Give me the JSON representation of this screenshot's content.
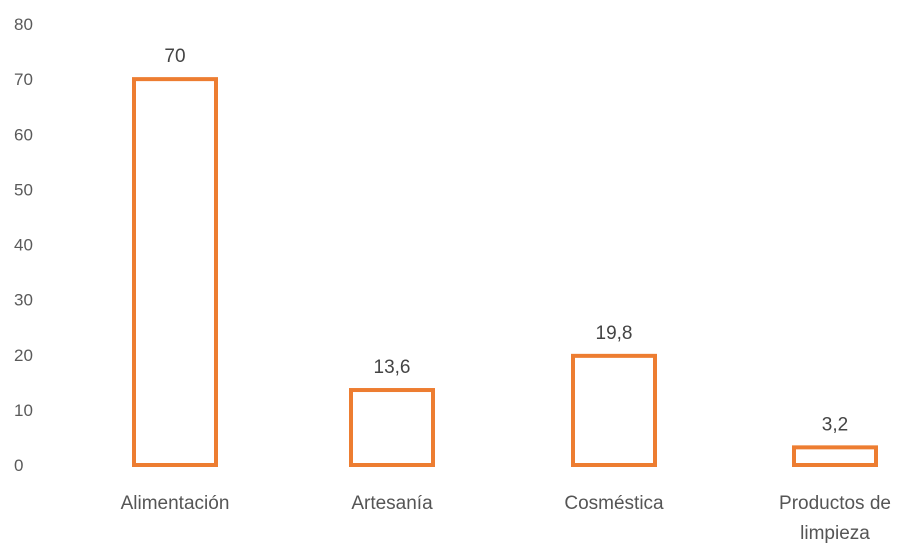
{
  "chart_data": {
    "type": "bar",
    "categories": [
      "Alimentación",
      "Artesanía",
      "Cosméstica",
      "Productos de limpieza"
    ],
    "category_lines": [
      [
        "Alimentación"
      ],
      [
        "Artesanía"
      ],
      [
        "Cosméstica"
      ],
      [
        "Productos de",
        "limpieza"
      ]
    ],
    "values": [
      70,
      13.6,
      19.8,
      3.2
    ],
    "value_labels": [
      "70",
      "13,6",
      "19,8",
      "3,2"
    ],
    "yticks": [
      0,
      10,
      20,
      30,
      40,
      50,
      60,
      70,
      80
    ],
    "ylim": [
      0,
      80
    ],
    "title": "",
    "xlabel": "",
    "ylabel": "",
    "grid": false,
    "legend": "none",
    "bar_style": "outline",
    "bar_color": "#ed7d31"
  }
}
